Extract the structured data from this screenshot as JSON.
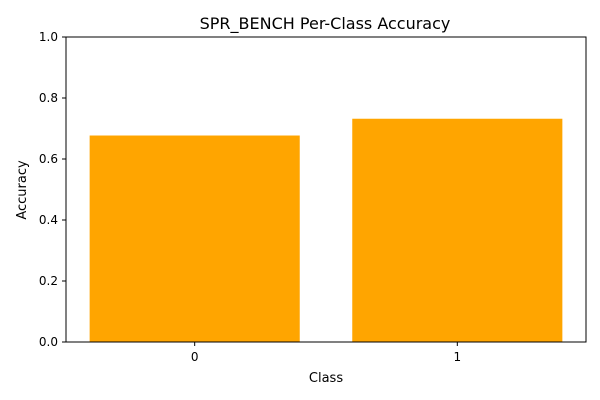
{
  "chart_data": {
    "type": "bar",
    "title": "SPR_BENCH Per-Class Accuracy",
    "xlabel": "Class",
    "ylabel": "Accuracy",
    "categories": [
      "0",
      "1"
    ],
    "values": [
      0.677,
      0.732
    ],
    "ylim": [
      0,
      1.0
    ],
    "yticks": [
      "0.0",
      "0.2",
      "0.4",
      "0.6",
      "0.8",
      "1.0"
    ],
    "bar_color": "#ffa500",
    "grid": false
  }
}
